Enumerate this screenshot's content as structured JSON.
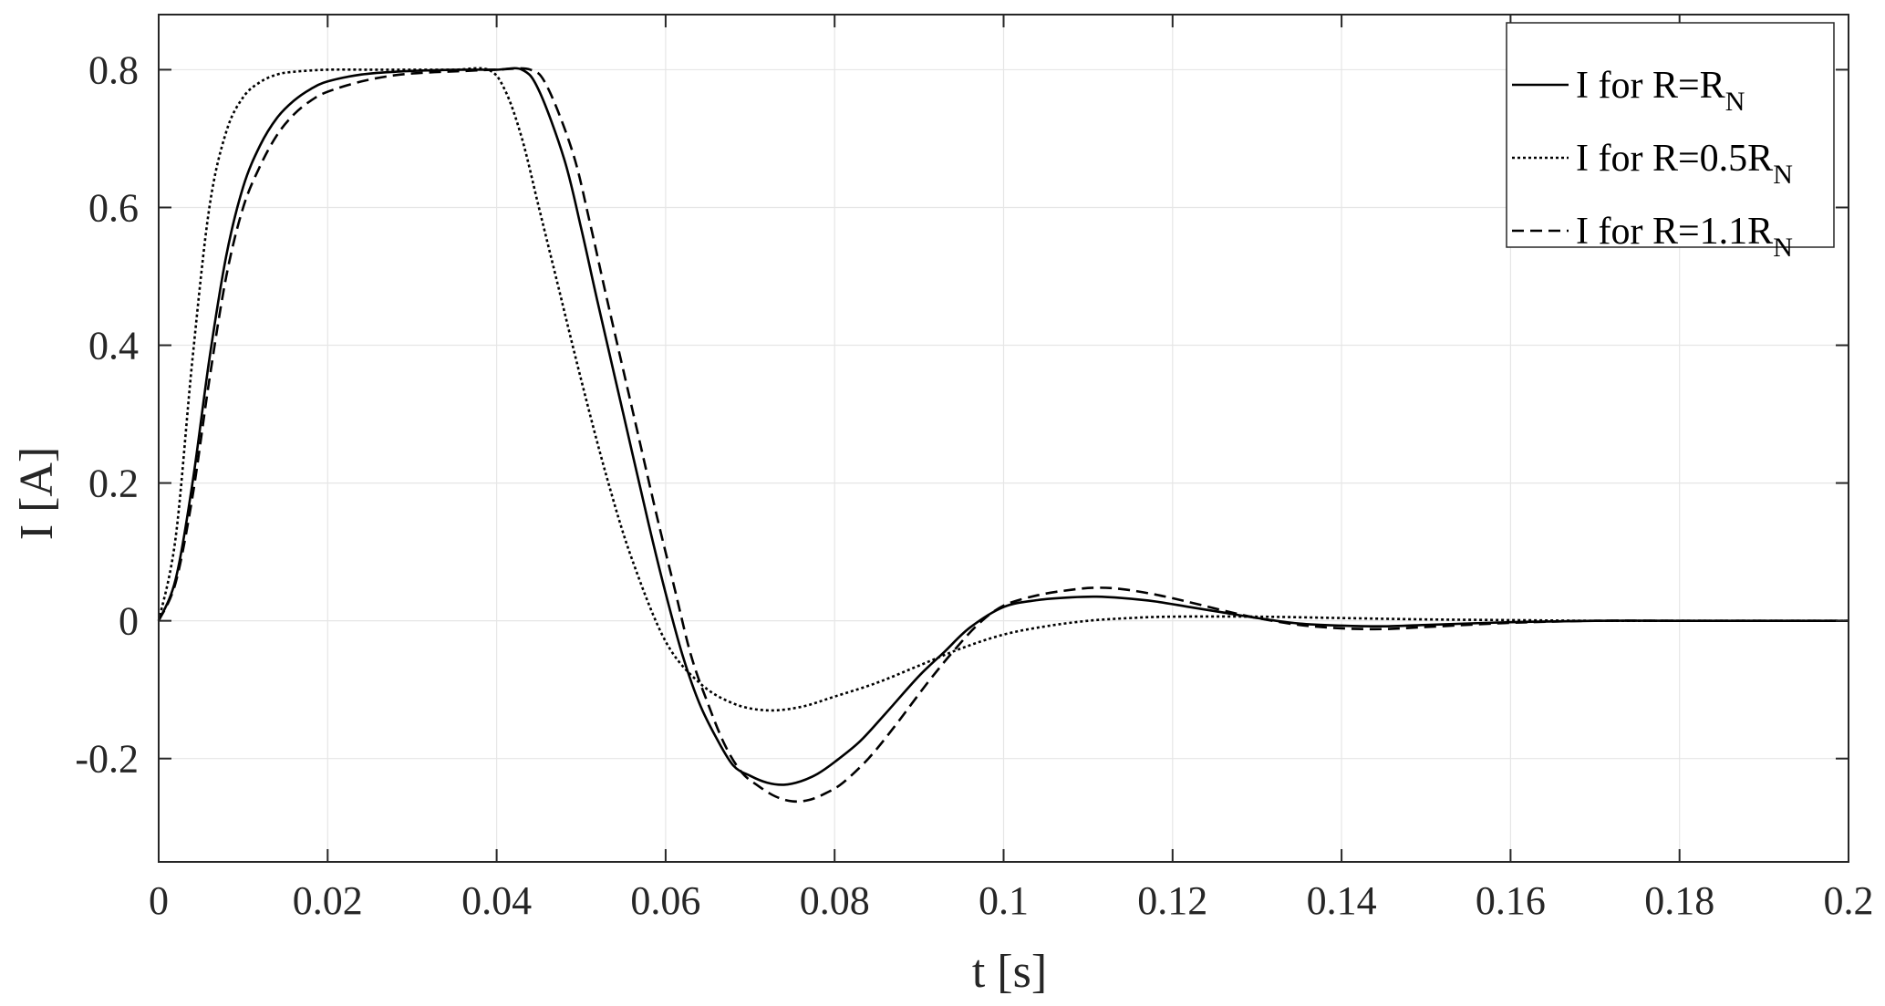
{
  "chart_data": {
    "type": "line",
    "xlabel": "t [s]",
    "ylabel": "I [A]",
    "xlim": [
      0,
      0.2
    ],
    "ylim": [
      -0.35,
      0.88
    ],
    "grid": true,
    "legend_position": "top-right",
    "xticks": [
      0,
      0.02,
      0.04,
      0.06,
      0.08,
      0.1,
      0.12,
      0.14,
      0.16,
      0.18,
      0.2
    ],
    "xtick_labels": [
      "0",
      "0.02",
      "0.04",
      "0.06",
      "0.08",
      "0.1",
      "0.12",
      "0.14",
      "0.16",
      "0.18",
      "0.2"
    ],
    "yticks": [
      -0.2,
      0,
      0.2,
      0.4,
      0.6,
      0.8
    ],
    "ytick_labels": [
      "-0.2",
      "0",
      "0.2",
      "0.4",
      "0.6",
      "0.8"
    ],
    "series": [
      {
        "name_main": "I for R=R",
        "name_sub": "N",
        "line_style": "solid",
        "color": "#000000",
        "x": [
          0,
          0.002,
          0.004,
          0.006,
          0.008,
          0.01,
          0.012,
          0.014,
          0.016,
          0.018,
          0.02,
          0.024,
          0.028,
          0.032,
          0.036,
          0.04,
          0.043,
          0.045,
          0.048,
          0.05,
          0.052,
          0.055,
          0.058,
          0.06,
          0.062,
          0.064,
          0.066,
          0.068,
          0.07,
          0.072,
          0.074,
          0.076,
          0.078,
          0.08,
          0.083,
          0.086,
          0.09,
          0.093,
          0.096,
          0.1,
          0.104,
          0.108,
          0.111,
          0.114,
          0.118,
          0.122,
          0.126,
          0.13,
          0.135,
          0.14,
          0.145,
          0.15,
          0.16,
          0.17,
          0.18,
          0.19,
          0.2
        ],
        "y": [
          0,
          0.06,
          0.2,
          0.38,
          0.53,
          0.63,
          0.69,
          0.73,
          0.755,
          0.772,
          0.783,
          0.793,
          0.797,
          0.799,
          0.8,
          0.8,
          0.8,
          0.77,
          0.67,
          0.57,
          0.46,
          0.3,
          0.14,
          0.04,
          -0.05,
          -0.12,
          -0.17,
          -0.21,
          -0.225,
          -0.235,
          -0.238,
          -0.233,
          -0.222,
          -0.205,
          -0.175,
          -0.135,
          -0.08,
          -0.045,
          -0.01,
          0.02,
          0.03,
          0.034,
          0.035,
          0.033,
          0.028,
          0.02,
          0.012,
          0.004,
          -0.004,
          -0.007,
          -0.008,
          -0.006,
          -0.002,
          0.0,
          0.0,
          0.0,
          0.0
        ]
      },
      {
        "name_main": "I for R=0.5R",
        "name_sub": "N",
        "line_style": "dotted",
        "color": "#000000",
        "x": [
          0,
          0.002,
          0.004,
          0.006,
          0.008,
          0.01,
          0.012,
          0.014,
          0.016,
          0.02,
          0.025,
          0.03,
          0.035,
          0.039,
          0.041,
          0.043,
          0.045,
          0.047,
          0.05,
          0.053,
          0.056,
          0.06,
          0.064,
          0.068,
          0.072,
          0.076,
          0.08,
          0.085,
          0.09,
          0.095,
          0.1,
          0.105,
          0.11,
          0.115,
          0.12,
          0.13,
          0.14,
          0.15,
          0.16,
          0.17,
          0.18,
          0.2
        ],
        "y": [
          0,
          0.12,
          0.38,
          0.6,
          0.71,
          0.76,
          0.782,
          0.793,
          0.797,
          0.8,
          0.8,
          0.8,
          0.8,
          0.8,
          0.77,
          0.7,
          0.6,
          0.5,
          0.35,
          0.21,
          0.09,
          -0.03,
          -0.09,
          -0.12,
          -0.13,
          -0.125,
          -0.11,
          -0.09,
          -0.065,
          -0.04,
          -0.02,
          -0.008,
          0.0,
          0.004,
          0.006,
          0.006,
          0.004,
          0.002,
          0.001,
          0.0,
          0.0,
          0.0
        ]
      },
      {
        "name_main": "I for R=1.1R",
        "name_sub": "N",
        "line_style": "dashed",
        "color": "#000000",
        "x": [
          0,
          0.002,
          0.004,
          0.006,
          0.008,
          0.01,
          0.012,
          0.014,
          0.016,
          0.018,
          0.02,
          0.024,
          0.028,
          0.032,
          0.036,
          0.04,
          0.044,
          0.046,
          0.049,
          0.051,
          0.053,
          0.056,
          0.059,
          0.061,
          0.063,
          0.065,
          0.067,
          0.069,
          0.071,
          0.073,
          0.075,
          0.077,
          0.079,
          0.081,
          0.084,
          0.087,
          0.091,
          0.094,
          0.097,
          0.1,
          0.104,
          0.108,
          0.111,
          0.114,
          0.118,
          0.122,
          0.126,
          0.13,
          0.135,
          0.14,
          0.145,
          0.15,
          0.16,
          0.17,
          0.18,
          0.19,
          0.2
        ],
        "y": [
          0,
          0.055,
          0.18,
          0.35,
          0.5,
          0.6,
          0.66,
          0.705,
          0.735,
          0.755,
          0.768,
          0.783,
          0.792,
          0.796,
          0.798,
          0.8,
          0.8,
          0.775,
          0.68,
          0.58,
          0.47,
          0.31,
          0.15,
          0.05,
          -0.05,
          -0.12,
          -0.18,
          -0.22,
          -0.24,
          -0.255,
          -0.262,
          -0.26,
          -0.25,
          -0.235,
          -0.2,
          -0.155,
          -0.09,
          -0.045,
          -0.005,
          0.022,
          0.037,
          0.045,
          0.048,
          0.046,
          0.038,
          0.027,
          0.015,
          0.004,
          -0.006,
          -0.011,
          -0.012,
          -0.009,
          -0.003,
          0.0,
          0.0,
          0.0,
          0.0
        ]
      }
    ]
  }
}
